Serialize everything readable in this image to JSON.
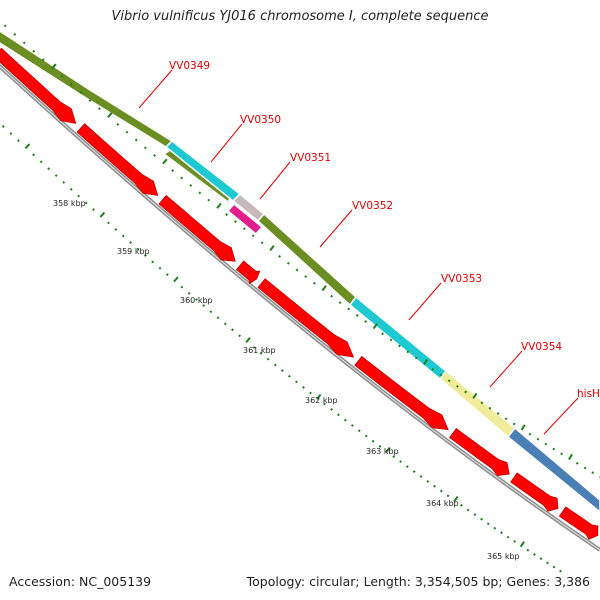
{
  "title": "Vibrio vulnificus YJ016 chromosome I, complete sequence",
  "footer": {
    "accession": "Accession: NC_005139",
    "topology": "Topology: circular; Length: 3,354,505 bp; Genes: 3,386"
  },
  "tick_labels": [
    "358 kbp",
    "359 kbp",
    "360 kbp",
    "361 kbp",
    "362 kbp",
    "363 kbp",
    "364 kbp",
    "365 kbp"
  ],
  "genes": [
    {
      "label": "VV0349",
      "color": "#6b8e23"
    },
    {
      "label": "VV0350",
      "color": "#1ec9d2"
    },
    {
      "label": "VV0351",
      "color": "#e01e8c"
    },
    {
      "label": "VV0352",
      "color": "#6b8e23"
    },
    {
      "label": "VV0353",
      "color": "#1ec9d2"
    },
    {
      "label": "VV0354",
      "color": "#f0ec9a"
    },
    {
      "label": "hisH",
      "color": "#4a7fb5"
    }
  ],
  "colors": {
    "cds": "#ff0000",
    "backbone": "#8a8a8a",
    "tick": "#1d7d1d",
    "label": "#e00000"
  }
}
